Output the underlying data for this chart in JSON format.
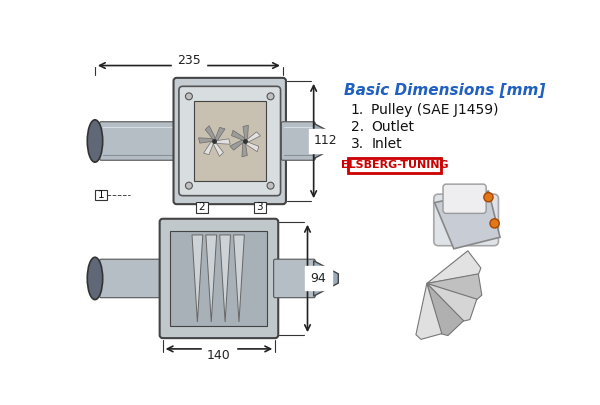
{
  "bg_color": "#ffffff",
  "title": "Basic Dimensions [mm]",
  "title_color": "#2060c0",
  "items": [
    {
      "num": "1.",
      "text": "Pulley (SAE J1459)"
    },
    {
      "num": "2.",
      "text": "Outlet"
    },
    {
      "num": "3.",
      "text": "Inlet"
    }
  ],
  "brand": "ELSBERG-TUNING",
  "brand_color": "#cc0000",
  "dim_235": "235",
  "dim_112": "112",
  "dim_94": "94",
  "dim_140": "140",
  "dim_color": "#222222"
}
